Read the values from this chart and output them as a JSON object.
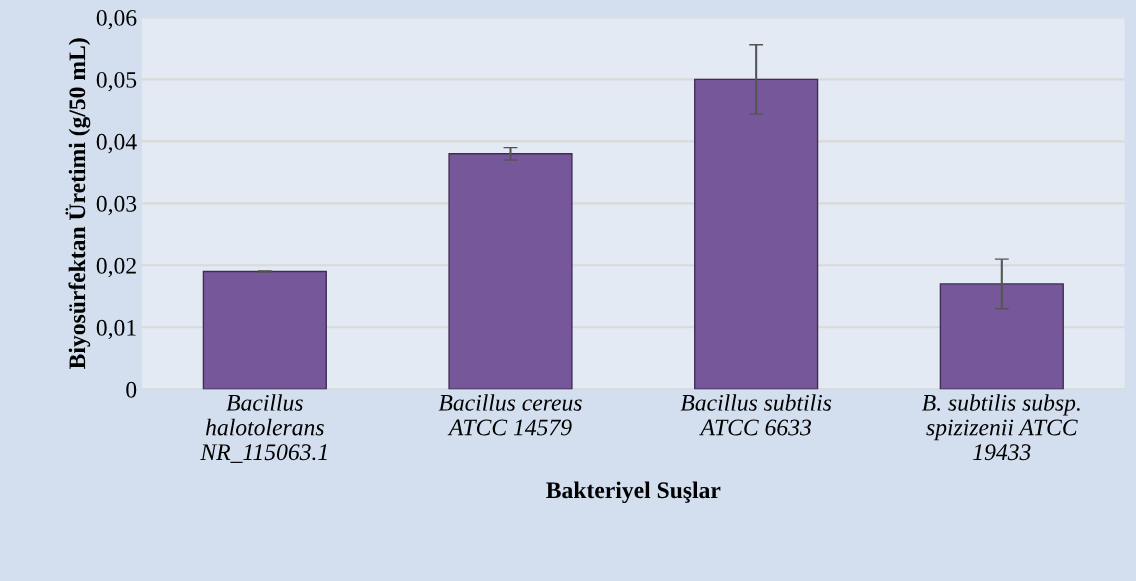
{
  "chart_data": {
    "type": "bar",
    "categories": [
      "Bacillus\nhalotolerans\nNR_115063.1",
      "Bacillus cereus\nATCC 14579",
      "Bacillus subtilis\nATCC 6633",
      "B. subtilis subsp.\nspizizenii ATCC\n19433"
    ],
    "values": [
      0.019,
      0.038,
      0.05,
      0.017
    ],
    "errors": [
      0.0001,
      0.001,
      0.0056,
      0.004
    ],
    "color": "#76589a",
    "xlabel": "Bakteriyel Suşlar",
    "ylabel": "Biyosürfektan Üretimi (g/50 mL)",
    "ylim": [
      0,
      0.06
    ],
    "yticks": [
      {
        "value": 0,
        "label": "0"
      },
      {
        "value": 0.01,
        "label": "0,01"
      },
      {
        "value": 0.02,
        "label": "0,02"
      },
      {
        "value": 0.03,
        "label": "0,03"
      },
      {
        "value": 0.04,
        "label": "0,04"
      },
      {
        "value": 0.05,
        "label": "0,05"
      },
      {
        "value": 0.06,
        "label": "0,06"
      }
    ],
    "grid": "y"
  }
}
